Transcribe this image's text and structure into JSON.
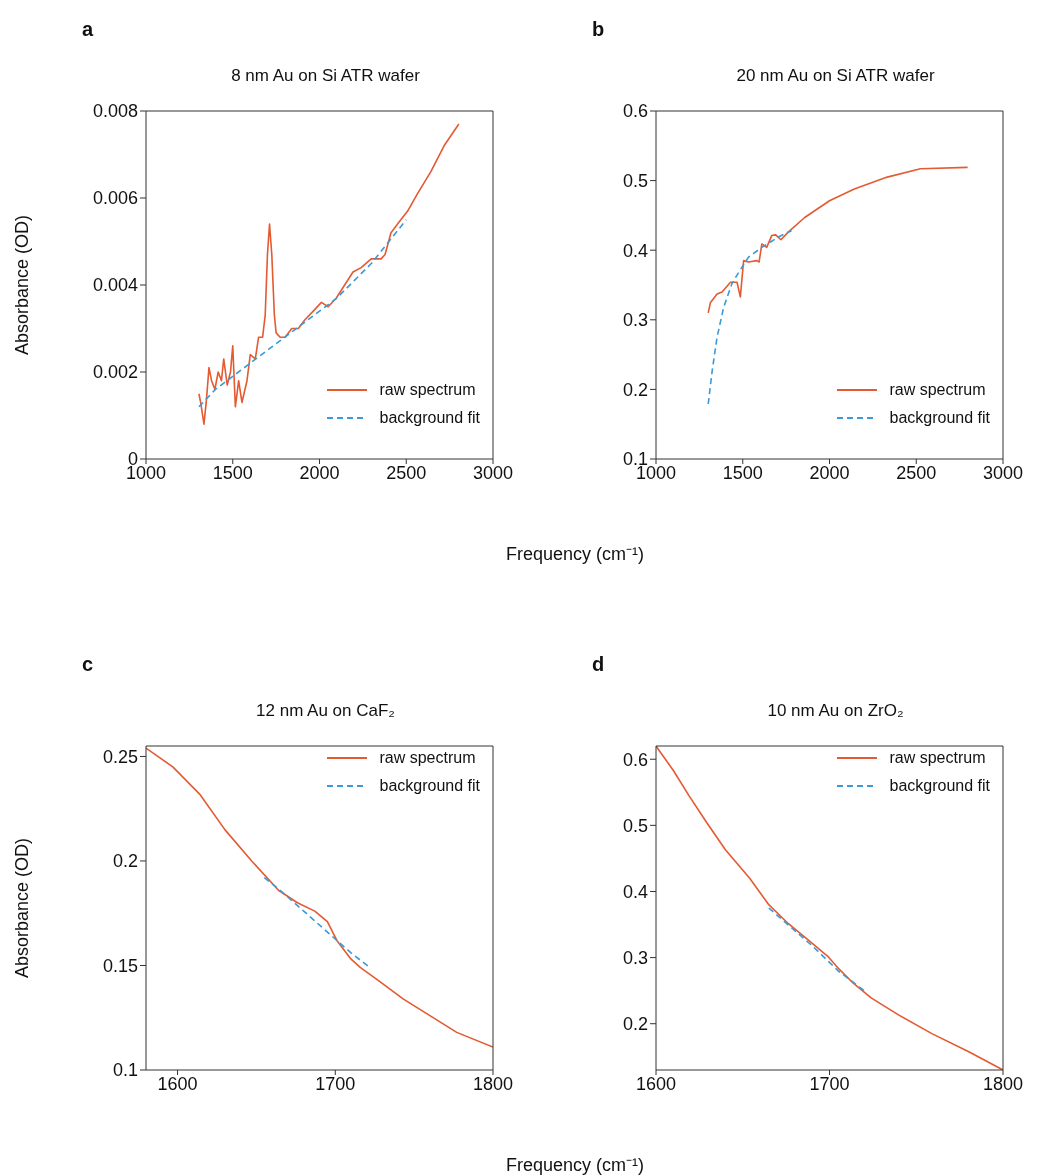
{
  "chart_data": [
    {
      "type": "line",
      "title": "8 nm Au on Si ATR wafer",
      "annotations": [
        "a"
      ],
      "xlabel": "Frequency (cm⁻¹)",
      "ylabel": "Absorbance (OD)",
      "xlim": [
        1000,
        3000
      ],
      "xticks": [
        1000,
        1500,
        2000,
        2500,
        3000
      ],
      "ylim": [
        0,
        0.008
      ],
      "yticks": [
        0,
        0.002,
        0.004,
        0.006,
        0.008
      ],
      "legend": "bottom right",
      "series": [
        {
          "name": "raw spectrum",
          "color": "#e45a32",
          "line_style": "solid",
          "x": [
            1305,
            1315,
            1334,
            1347,
            1363,
            1378,
            1397,
            1416,
            1435,
            1448,
            1468,
            1487,
            1500,
            1515,
            1534,
            1553,
            1582,
            1601,
            1630,
            1649,
            1672,
            1687,
            1700,
            1712,
            1725,
            1740,
            1750,
            1773,
            1802,
            1840,
            1878,
            1916,
            1964,
            2011,
            2050,
            2097,
            2145,
            2193,
            2240,
            2298,
            2355,
            2378,
            2412,
            2450,
            2508,
            2565,
            2641,
            2718,
            2803
          ],
          "values": [
            0.0015,
            0.0013,
            0.0008,
            0.0013,
            0.0021,
            0.0018,
            0.0016,
            0.002,
            0.0018,
            0.0023,
            0.0017,
            0.002,
            0.0026,
            0.0012,
            0.0018,
            0.0013,
            0.0018,
            0.0024,
            0.0023,
            0.0028,
            0.0028,
            0.0033,
            0.0047,
            0.0054,
            0.0047,
            0.0033,
            0.0029,
            0.0028,
            0.0028,
            0.003,
            0.003,
            0.0032,
            0.0034,
            0.0036,
            0.0035,
            0.0037,
            0.004,
            0.0043,
            0.0044,
            0.0046,
            0.0046,
            0.0047,
            0.0052,
            0.0054,
            0.0057,
            0.0061,
            0.0066,
            0.0072,
            0.0077
          ]
        },
        {
          "name": "background fit",
          "color": "#3a9ad9",
          "line_style": "dashed",
          "x": [
            1305,
            1400,
            1500,
            1600,
            1700,
            1800,
            1900,
            2000,
            2100,
            2200,
            2300,
            2400,
            2500
          ],
          "values": [
            0.0012,
            0.0016,
            0.0019,
            0.0022,
            0.0025,
            0.0028,
            0.0031,
            0.0034,
            0.0037,
            0.0041,
            0.0045,
            0.005,
            0.0055
          ]
        }
      ]
    },
    {
      "type": "line",
      "title": "20 nm Au on Si ATR wafer",
      "annotations": [
        "b"
      ],
      "xlim": [
        1000,
        3000
      ],
      "xticks": [
        1000,
        1500,
        2000,
        2500,
        3000
      ],
      "ylim": [
        0.1,
        0.6
      ],
      "yticks": [
        0.1,
        0.2,
        0.3,
        0.4,
        0.5,
        0.6
      ],
      "legend": "bottom right",
      "series": [
        {
          "name": "raw spectrum",
          "color": "#e45a32",
          "line_style": "solid",
          "x": [
            1301,
            1314,
            1352,
            1381,
            1429,
            1467,
            1486,
            1505,
            1533,
            1581,
            1594,
            1610,
            1638,
            1667,
            1690,
            1720,
            1762,
            1857,
            2000,
            2143,
            2333,
            2524,
            2796
          ],
          "values": [
            0.31,
            0.325,
            0.337,
            0.34,
            0.354,
            0.354,
            0.333,
            0.385,
            0.383,
            0.385,
            0.383,
            0.409,
            0.404,
            0.421,
            0.422,
            0.415,
            0.426,
            0.447,
            0.471,
            0.488,
            0.505,
            0.517,
            0.519
          ]
        },
        {
          "name": "background fit",
          "color": "#3a9ad9",
          "line_style": "dashed",
          "x": [
            1301,
            1324,
            1352,
            1390,
            1438,
            1476,
            1533,
            1610,
            1705,
            1781
          ],
          "values": [
            0.179,
            0.227,
            0.275,
            0.318,
            0.352,
            0.368,
            0.39,
            0.404,
            0.419,
            0.428
          ]
        }
      ]
    },
    {
      "type": "line",
      "title": "12 nm Au on CaF₂",
      "annotations": [
        "c"
      ],
      "xlabel": "Frequency (cm⁻¹)",
      "ylabel": "Absorbance (OD)",
      "xlim": [
        1580,
        1800
      ],
      "xticks": [
        1600,
        1700,
        1800
      ],
      "ylim": [
        0.1,
        0.255
      ],
      "yticks": [
        0.1,
        0.15,
        0.2,
        0.25
      ],
      "legend": "top right",
      "series": [
        {
          "name": "raw spectrum",
          "color": "#e45a32",
          "line_style": "solid",
          "x": [
            1580,
            1597,
            1614,
            1630,
            1647,
            1664,
            1676,
            1687,
            1695,
            1701,
            1710,
            1716,
            1727,
            1743,
            1760,
            1777,
            1800
          ],
          "values": [
            0.254,
            0.245,
            0.232,
            0.215,
            0.2,
            0.186,
            0.18,
            0.176,
            0.171,
            0.162,
            0.153,
            0.149,
            0.143,
            0.134,
            0.126,
            0.118,
            0.111
          ]
        },
        {
          "name": "background fit",
          "color": "#3a9ad9",
          "line_style": "dashed",
          "x": [
            1655,
            1665,
            1680,
            1695,
            1710,
            1722
          ],
          "values": [
            0.192,
            0.186,
            0.176,
            0.166,
            0.156,
            0.149
          ]
        }
      ]
    },
    {
      "type": "line",
      "title": "10 nm Au on ZrO₂",
      "annotations": [
        "d"
      ],
      "xlim": [
        1600,
        1800
      ],
      "xticks": [
        1600,
        1700,
        1800
      ],
      "ylim": [
        0.13,
        0.62
      ],
      "yticks": [
        0.2,
        0.3,
        0.4,
        0.5,
        0.6
      ],
      "legend": "top right",
      "series": [
        {
          "name": "raw spectrum",
          "color": "#e45a32",
          "line_style": "solid",
          "x": [
            1600,
            1610,
            1619,
            1629,
            1640,
            1654,
            1665,
            1676,
            1688,
            1699,
            1705,
            1713,
            1724,
            1740,
            1759,
            1780,
            1800
          ],
          "values": [
            0.62,
            0.583,
            0.545,
            0.505,
            0.463,
            0.42,
            0.38,
            0.352,
            0.326,
            0.302,
            0.284,
            0.263,
            0.239,
            0.213,
            0.185,
            0.158,
            0.13
          ]
        },
        {
          "name": "background fit",
          "color": "#3a9ad9",
          "line_style": "dashed",
          "x": [
            1665,
            1676,
            1690,
            1705,
            1720
          ],
          "values": [
            0.375,
            0.35,
            0.318,
            0.28,
            0.25
          ]
        }
      ]
    }
  ]
}
